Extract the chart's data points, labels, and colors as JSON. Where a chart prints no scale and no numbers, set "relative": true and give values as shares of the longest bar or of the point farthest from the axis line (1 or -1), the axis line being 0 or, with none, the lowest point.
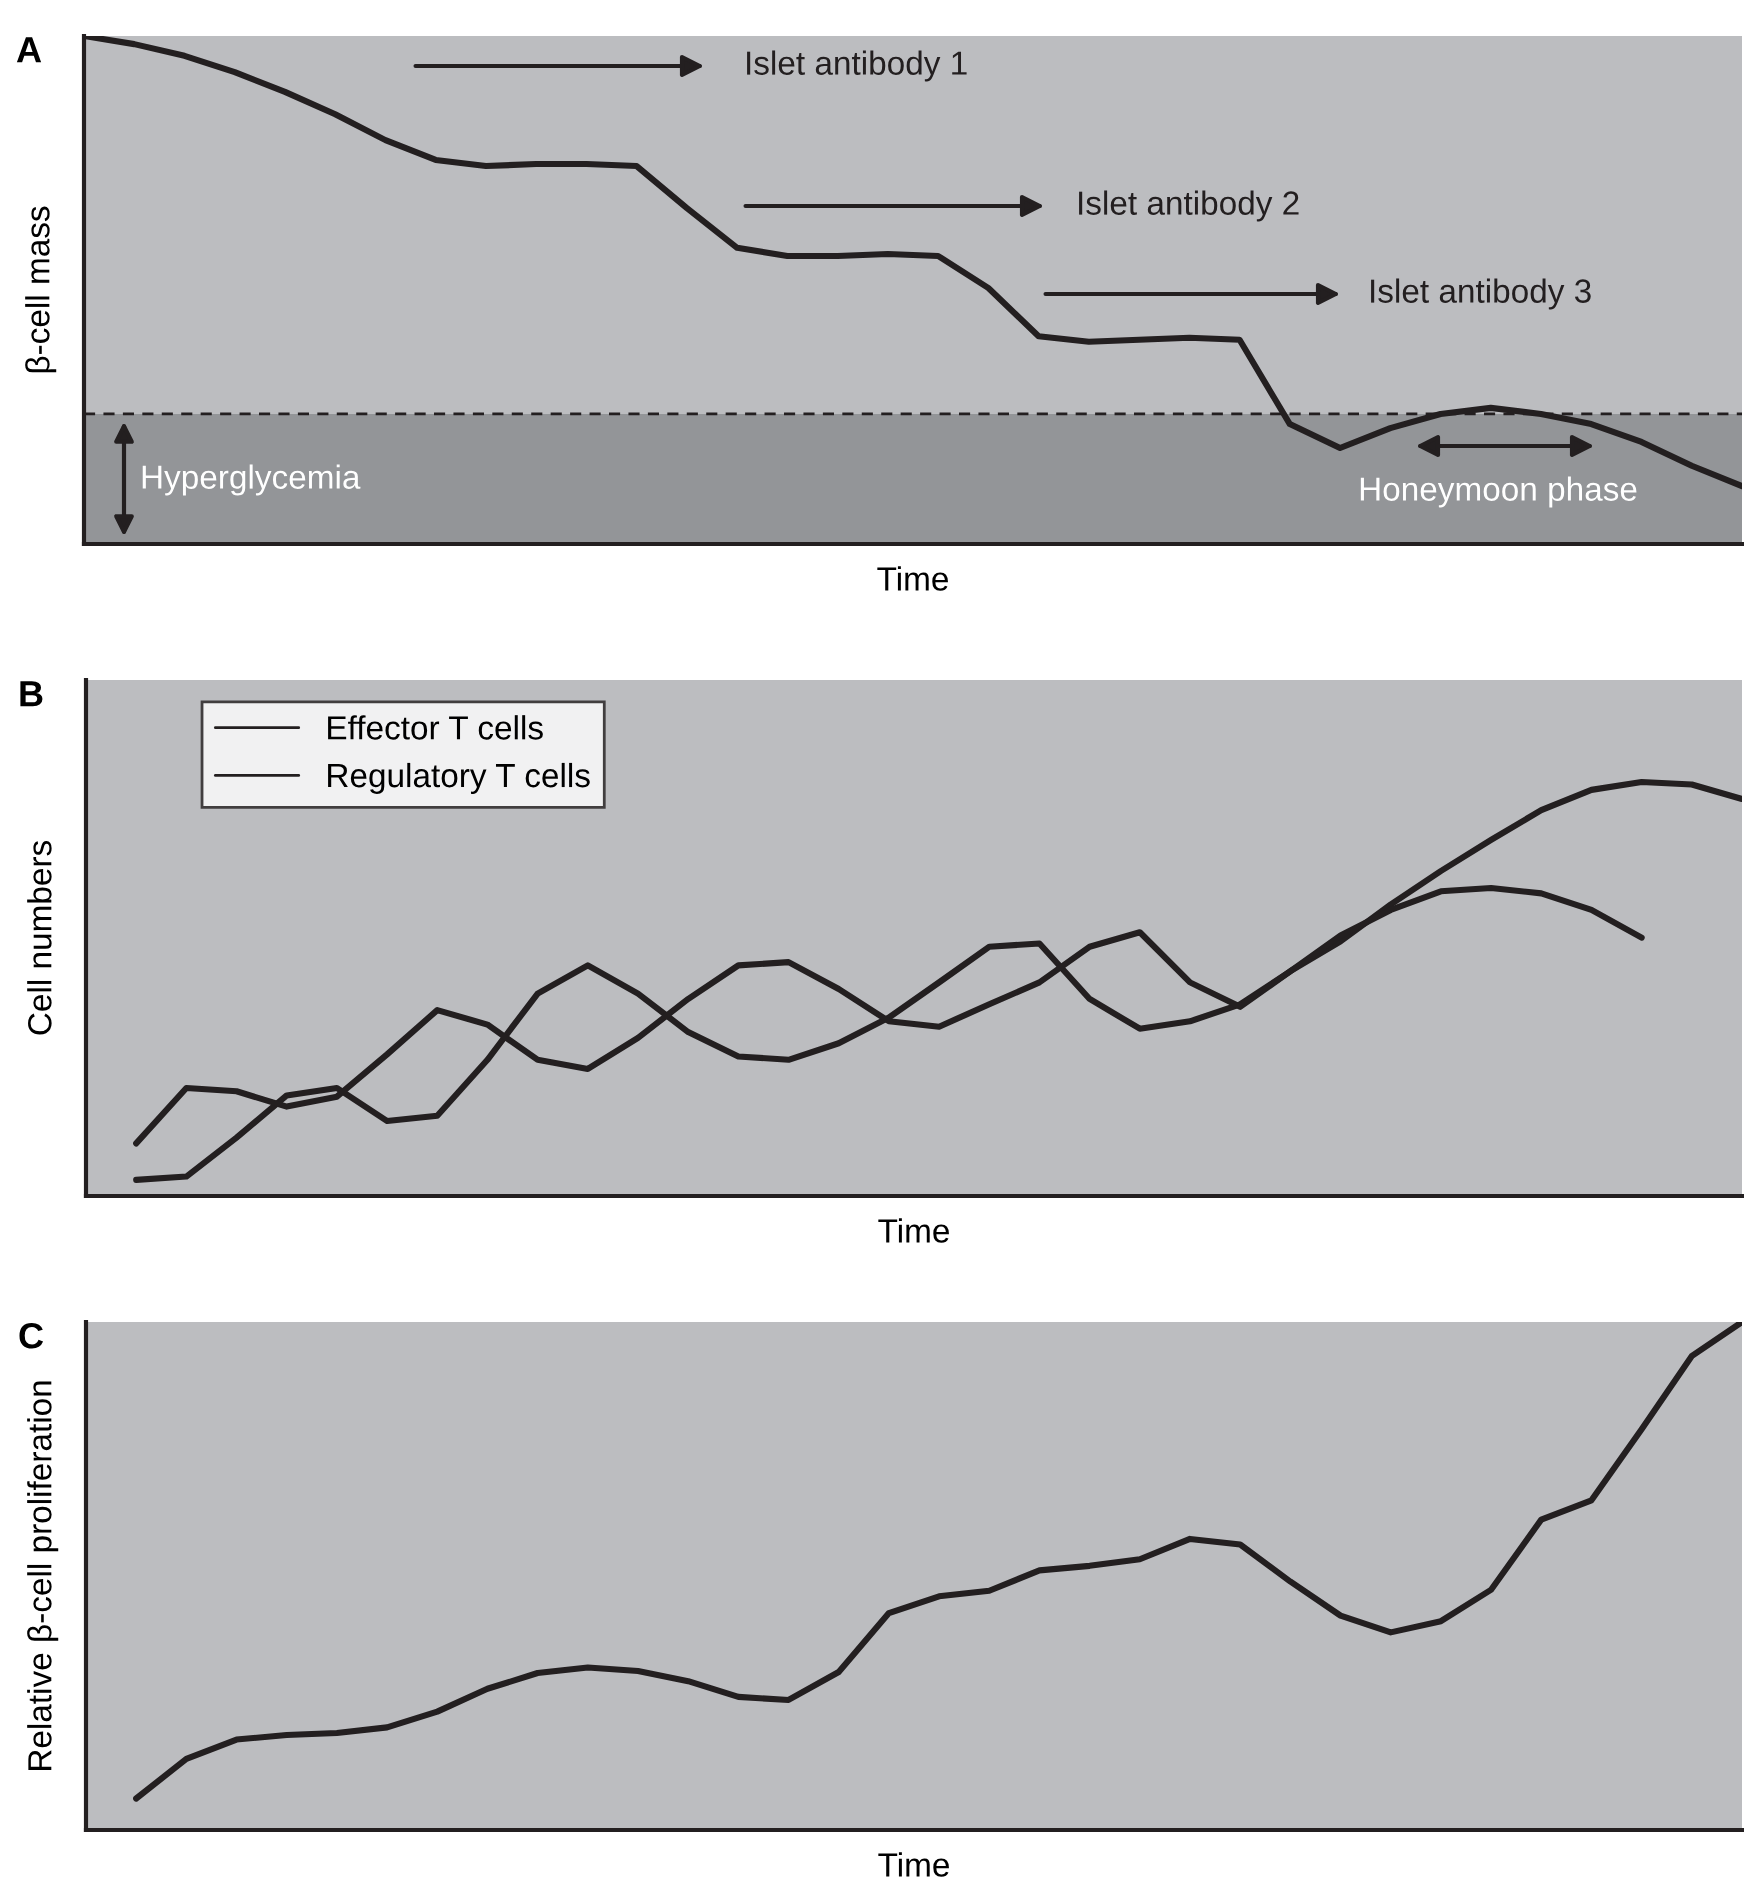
{
  "chart_data": [
    {
      "type": "line",
      "title": "A",
      "xlabel": "Time",
      "ylabel": "β-cell mass",
      "relative": true,
      "legend": false,
      "categories": [
        null,
        null,
        null,
        null,
        null,
        null,
        null,
        null,
        null,
        null,
        null,
        null,
        null,
        null,
        null,
        null,
        null,
        null,
        null,
        null,
        null,
        null,
        null,
        null,
        null,
        null,
        null,
        null,
        null,
        null,
        null,
        null,
        null,
        null
      ],
      "series": [
        {
          "color": "#231f20",
          "values": [
            1.0,
            0.984,
            0.961,
            0.929,
            0.89,
            0.846,
            0.795,
            0.756,
            0.744,
            0.748,
            0.748,
            0.744,
            0.661,
            0.583,
            0.567,
            0.567,
            0.571,
            0.567,
            0.504,
            0.409,
            0.398,
            0.402,
            0.406,
            0.402,
            0.236,
            0.189,
            0.228,
            0.256,
            0.268,
            0.256,
            0.236,
            0.201,
            0.154,
            0.114
          ]
        }
      ],
      "ref_lines": [
        {
          "axis": "y",
          "value": 0.256,
          "color": "#231f20",
          "line_style": "dashed"
        }
      ],
      "bands": [
        {
          "axis": "y",
          "from": 0,
          "to": 0.256,
          "label": "Hyperglycemia",
          "color": "#939598"
        }
      ],
      "annotations": [
        "Islet antibody 1",
        "Islet antibody 2",
        "Islet antibody 3",
        "Honeymoon phase"
      ]
    },
    {
      "type": "line",
      "title": "B",
      "xlabel": "Time",
      "ylabel": "Cell numbers",
      "relative": true,
      "legend": "top left",
      "categories": [
        null,
        null,
        null,
        null,
        null,
        null,
        null,
        null,
        null,
        null,
        null,
        null,
        null,
        null,
        null,
        null,
        null,
        null,
        null,
        null,
        null,
        null,
        null,
        null,
        null,
        null,
        null,
        null,
        null,
        null,
        null,
        null,
        null,
        null
      ],
      "series": [
        {
          "name": "Effector T cells",
          "color": "#231f20",
          "values": [
            null,
            0.039,
            0.047,
            0.141,
            0.243,
            0.261,
            0.181,
            0.194,
            0.329,
            0.489,
            0.557,
            0.489,
            0.396,
            0.337,
            0.329,
            0.369,
            0.431,
            0.516,
            0.602,
            0.61,
            0.476,
            0.404,
            0.422,
            0.463,
            0.543,
            0.615,
            0.704,
            0.785,
            0.86,
            0.932,
            0.981,
            1.0,
            0.994,
            0.959
          ]
        },
        {
          "name": "Regulatory T cells",
          "color": "#231f20",
          "values": [
            null,
            0.127,
            0.261,
            0.253,
            0.216,
            0.24,
            0.342,
            0.449,
            0.414,
            0.329,
            0.307,
            0.382,
            0.476,
            0.557,
            0.565,
            0.5,
            0.422,
            0.409,
            0.463,
            0.516,
            0.602,
            0.637,
            0.516,
            0.457,
            0.543,
            0.629,
            0.691,
            0.736,
            0.744,
            0.731,
            0.691,
            0.624,
            null,
            null
          ]
        }
      ]
    },
    {
      "type": "line",
      "title": "C",
      "xlabel": "Time",
      "ylabel": "Relative β-cell proliferation",
      "relative": true,
      "legend": false,
      "categories": [
        null,
        null,
        null,
        null,
        null,
        null,
        null,
        null,
        null,
        null,
        null,
        null,
        null,
        null,
        null,
        null,
        null,
        null,
        null,
        null,
        null,
        null,
        null,
        null,
        null,
        null,
        null,
        null,
        null,
        null,
        null,
        null,
        null,
        null
      ],
      "series": [
        {
          "color": "#231f20",
          "values": [
            null,
            0.062,
            0.14,
            0.178,
            0.187,
            0.191,
            0.202,
            0.233,
            0.278,
            0.309,
            0.32,
            0.313,
            0.293,
            0.262,
            0.256,
            0.311,
            0.427,
            0.46,
            0.471,
            0.511,
            0.52,
            0.533,
            0.573,
            0.562,
            0.489,
            0.422,
            0.389,
            0.411,
            0.473,
            0.611,
            0.649,
            0.789,
            0.933,
            1.0
          ]
        }
      ]
    }
  ]
}
